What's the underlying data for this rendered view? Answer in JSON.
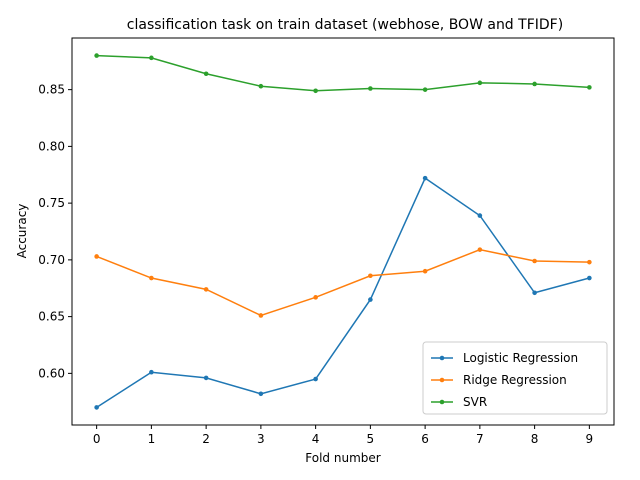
{
  "chart_data": {
    "type": "line",
    "title": "classification task on train dataset (webhose, BOW and TFIDF)",
    "xlabel": "Fold number",
    "ylabel": "Accuracy",
    "x": [
      0,
      1,
      2,
      3,
      4,
      5,
      6,
      7,
      8,
      9
    ],
    "x_ticks": [
      "0",
      "1",
      "2",
      "3",
      "4",
      "5",
      "6",
      "7",
      "8",
      "9"
    ],
    "y_ticks": [
      "0.60",
      "0.65",
      "0.70",
      "0.75",
      "0.80",
      "0.85"
    ],
    "y_tick_values": [
      0.6,
      0.65,
      0.7,
      0.75,
      0.8,
      0.85
    ],
    "xlim": [
      -0.45,
      9.45
    ],
    "ylim": [
      0.5545,
      0.8955
    ],
    "grid": false,
    "legend_position": "lower right",
    "series": [
      {
        "name": "Logistic Regression",
        "color": "#1f77b4",
        "values": [
          0.57,
          0.601,
          0.596,
          0.582,
          0.595,
          0.665,
          0.772,
          0.739,
          0.671,
          0.684
        ]
      },
      {
        "name": "Ridge Regression",
        "color": "#ff7f0e",
        "values": [
          0.703,
          0.684,
          0.674,
          0.651,
          0.667,
          0.686,
          0.69,
          0.709,
          0.699,
          0.698
        ]
      },
      {
        "name": "SVR",
        "color": "#2ca02c",
        "values": [
          0.88,
          0.878,
          0.864,
          0.853,
          0.849,
          0.851,
          0.85,
          0.856,
          0.855,
          0.852
        ]
      }
    ]
  }
}
